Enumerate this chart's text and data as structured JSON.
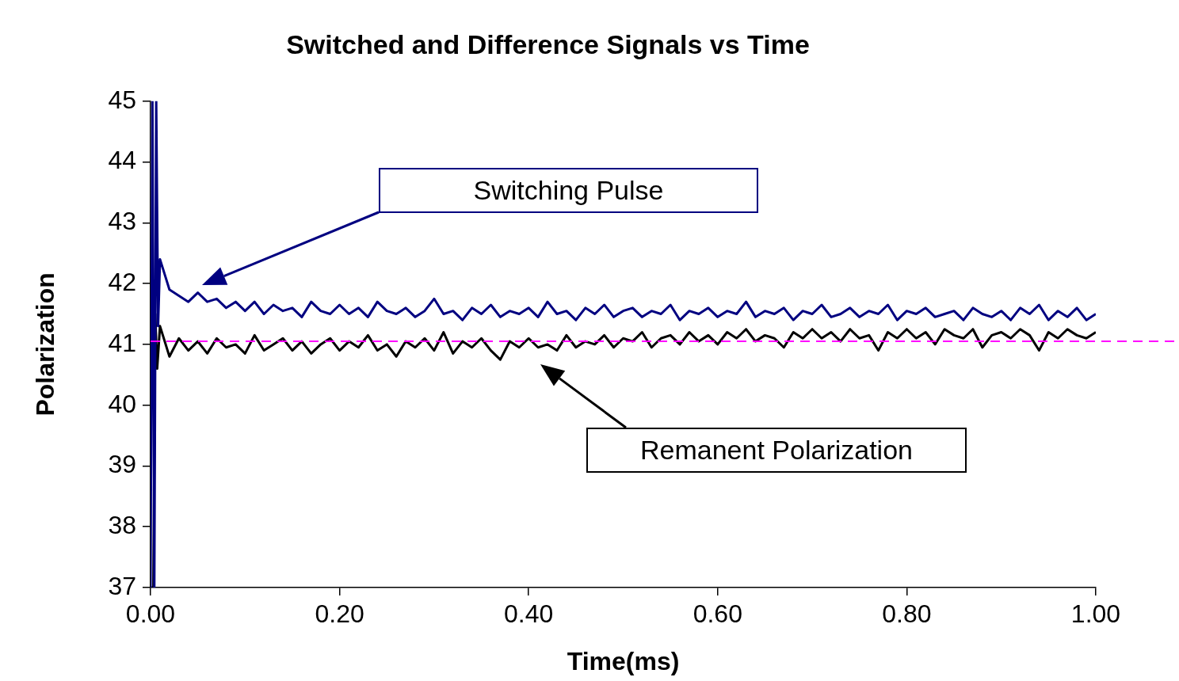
{
  "chart_data": {
    "type": "line",
    "title": "Switched and Difference Signals vs Time",
    "xlabel": "Time(ms)",
    "ylabel": "Polarization",
    "xlim": [
      0,
      1
    ],
    "xticks": [
      {
        "value": 0,
        "label": "0.00"
      },
      {
        "value": 0.2,
        "label": "0.20"
      },
      {
        "value": 0.4,
        "label": "0.40"
      },
      {
        "value": 0.6,
        "label": "0.60"
      },
      {
        "value": 0.8,
        "label": "0.80"
      },
      {
        "value": 1,
        "label": "1.00"
      }
    ],
    "ylim": [
      37,
      45
    ],
    "yticks": [
      37,
      38,
      39,
      40,
      41,
      42,
      43,
      44,
      45
    ],
    "grid": false,
    "legend": false,
    "marker": "none",
    "line_style": "solid",
    "series": [
      {
        "color": "#000080",
        "x": [
          0,
          0.002,
          0.004,
          0.006,
          0.008,
          0.01,
          0.02,
          0.03,
          0.04,
          0.05,
          0.06,
          0.07,
          0.08,
          0.09,
          0.1,
          0.11,
          0.12,
          0.13,
          0.14,
          0.15,
          0.16,
          0.17,
          0.18,
          0.19,
          0.2,
          0.21,
          0.22,
          0.23,
          0.24,
          0.25,
          0.26,
          0.27,
          0.28,
          0.29,
          0.3,
          0.31,
          0.32,
          0.33,
          0.34,
          0.35,
          0.36,
          0.37,
          0.38,
          0.39,
          0.4,
          0.41,
          0.42,
          0.43,
          0.44,
          0.45,
          0.46,
          0.47,
          0.48,
          0.49,
          0.5,
          0.51,
          0.52,
          0.53,
          0.54,
          0.55,
          0.56,
          0.57,
          0.58,
          0.59,
          0.6,
          0.61,
          0.62,
          0.63,
          0.64,
          0.65,
          0.66,
          0.67,
          0.68,
          0.69,
          0.7,
          0.71,
          0.72,
          0.73,
          0.74,
          0.75,
          0.76,
          0.77,
          0.78,
          0.79,
          0.8,
          0.81,
          0.82,
          0.83,
          0.84,
          0.85,
          0.86,
          0.87,
          0.88,
          0.89,
          0.9,
          0.91,
          0.92,
          0.93,
          0.94,
          0.95,
          0.96,
          0.97,
          0.98,
          0.99,
          1
        ],
        "values": [
          37,
          45,
          37,
          45,
          41.3,
          42.4,
          41.9,
          41.8,
          41.7,
          41.85,
          41.7,
          41.75,
          41.6,
          41.7,
          41.55,
          41.7,
          41.5,
          41.65,
          41.55,
          41.6,
          41.45,
          41.7,
          41.55,
          41.5,
          41.65,
          41.5,
          41.6,
          41.45,
          41.7,
          41.55,
          41.5,
          41.6,
          41.45,
          41.55,
          41.75,
          41.5,
          41.55,
          41.4,
          41.6,
          41.5,
          41.65,
          41.45,
          41.55,
          41.5,
          41.6,
          41.45,
          41.7,
          41.5,
          41.55,
          41.4,
          41.6,
          41.5,
          41.65,
          41.45,
          41.55,
          41.6,
          41.45,
          41.55,
          41.5,
          41.65,
          41.4,
          41.55,
          41.5,
          41.6,
          41.45,
          41.55,
          41.5,
          41.7,
          41.45,
          41.55,
          41.5,
          41.6,
          41.4,
          41.55,
          41.5,
          41.65,
          41.45,
          41.5,
          41.6,
          41.45,
          41.55,
          41.5,
          41.65,
          41.4,
          41.55,
          41.5,
          41.6,
          41.45,
          41.5,
          41.55,
          41.4,
          41.6,
          41.5,
          41.45,
          41.55,
          41.4,
          41.6,
          41.5,
          41.65,
          41.4,
          41.55,
          41.45,
          41.6,
          41.4,
          41.5
        ]
      },
      {
        "color": "#000000",
        "x": [
          0,
          0.003,
          0.005,
          0.007,
          0.01,
          0.02,
          0.03,
          0.04,
          0.05,
          0.06,
          0.07,
          0.08,
          0.09,
          0.1,
          0.11,
          0.12,
          0.13,
          0.14,
          0.15,
          0.16,
          0.17,
          0.18,
          0.19,
          0.2,
          0.21,
          0.22,
          0.23,
          0.24,
          0.25,
          0.26,
          0.27,
          0.28,
          0.29,
          0.3,
          0.31,
          0.32,
          0.33,
          0.34,
          0.35,
          0.36,
          0.37,
          0.38,
          0.39,
          0.4,
          0.41,
          0.42,
          0.43,
          0.44,
          0.45,
          0.46,
          0.47,
          0.48,
          0.49,
          0.5,
          0.51,
          0.52,
          0.53,
          0.54,
          0.55,
          0.56,
          0.57,
          0.58,
          0.59,
          0.6,
          0.61,
          0.62,
          0.63,
          0.64,
          0.65,
          0.66,
          0.67,
          0.68,
          0.69,
          0.7,
          0.71,
          0.72,
          0.73,
          0.74,
          0.75,
          0.76,
          0.77,
          0.78,
          0.79,
          0.8,
          0.81,
          0.82,
          0.83,
          0.84,
          0.85,
          0.86,
          0.87,
          0.88,
          0.89,
          0.9,
          0.91,
          0.92,
          0.93,
          0.94,
          0.95,
          0.96,
          0.97,
          0.98,
          0.99,
          1
        ],
        "values": [
          37,
          37,
          41.5,
          40.6,
          41.3,
          40.8,
          41.1,
          40.9,
          41.05,
          40.85,
          41.1,
          40.95,
          41,
          40.85,
          41.15,
          40.9,
          41,
          41.1,
          40.9,
          41.05,
          40.85,
          41,
          41.1,
          40.9,
          41.05,
          40.95,
          41.15,
          40.9,
          41,
          40.8,
          41.05,
          40.95,
          41.1,
          40.9,
          41.2,
          40.85,
          41.05,
          40.95,
          41.1,
          40.9,
          40.75,
          41.05,
          40.95,
          41.1,
          40.95,
          41,
          40.9,
          41.15,
          40.95,
          41.05,
          41,
          41.15,
          40.95,
          41.1,
          41.05,
          41.2,
          40.95,
          41.1,
          41.15,
          41,
          41.2,
          41.05,
          41.15,
          41,
          41.2,
          41.1,
          41.25,
          41.05,
          41.15,
          41.1,
          40.95,
          41.2,
          41.1,
          41.25,
          41.1,
          41.2,
          41.05,
          41.25,
          41.1,
          41.15,
          40.9,
          41.2,
          41.1,
          41.25,
          41.1,
          41.2,
          41,
          41.25,
          41.15,
          41.1,
          41.25,
          40.95,
          41.15,
          41.2,
          41.1,
          41.25,
          41.15,
          40.9,
          41.2,
          41.1,
          41.25,
          41.15,
          41.1,
          41.2
        ]
      }
    ],
    "ref_lines": [
      {
        "axis": "y",
        "value": 41.05,
        "color": "#ff00ff",
        "line_style": "dashed"
      }
    ],
    "annotations": [
      "Switching Pulse",
      "Remanent Polarization"
    ]
  }
}
